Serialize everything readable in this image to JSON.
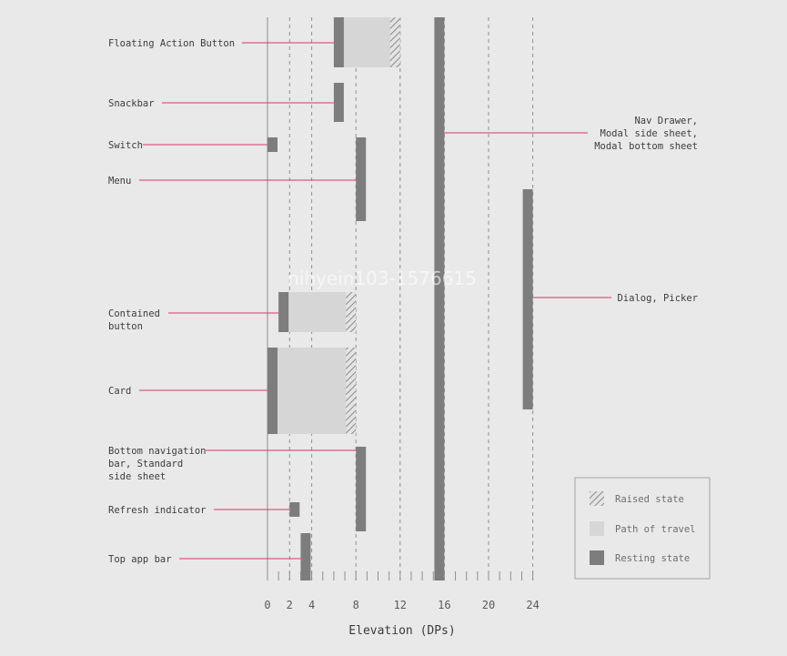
{
  "watermark": "nihyein103-1576615",
  "chart_data": {
    "type": "bar",
    "orientation": "horizontal-range",
    "xlabel": "Elevation (DPs)",
    "xticks": [
      0,
      2,
      4,
      8,
      12,
      16,
      20,
      24
    ],
    "xlim": [
      0,
      24
    ],
    "grid": "dashed vertical lines at labeled ticks",
    "categories": [
      "Floating Action Button",
      "Snackbar",
      "Switch",
      "Menu",
      "Contained button",
      "Card",
      "Bottom navigation bar, Standard side sheet",
      "Refresh indicator",
      "Top app bar",
      "Nav Drawer, Modal side sheet, Modal bottom sheet",
      "Dialog, Picker"
    ],
    "series": [
      {
        "name": "Resting state",
        "values": [
          6,
          6,
          0,
          8,
          1,
          0,
          8,
          2,
          3,
          16,
          24
        ]
      },
      {
        "name": "Path of travel",
        "ranges": [
          [
            6,
            11
          ],
          null,
          null,
          null,
          [
            1,
            7
          ],
          [
            0,
            7
          ],
          null,
          null,
          null,
          null,
          null
        ]
      },
      {
        "name": "Raised state",
        "values": [
          12,
          null,
          null,
          null,
          8,
          8,
          null,
          null,
          null,
          null,
          null
        ]
      }
    ],
    "labels": [
      {
        "text": "Floating Action Button"
      },
      {
        "text": "Snackbar"
      },
      {
        "text": "Switch"
      },
      {
        "text": "Menu"
      },
      {
        "text": "Contained\nbutton"
      },
      {
        "text": "Card"
      },
      {
        "text": "Bottom navigation\nbar, Standard\nside sheet"
      },
      {
        "text": "Refresh indicator"
      },
      {
        "text": "Top app bar"
      },
      {
        "text": "Nav Drawer,\nModal side sheet,\nModal bottom sheet"
      },
      {
        "text": "Dialog, Picker"
      }
    ],
    "legend": {
      "position": "bottom-right",
      "items": [
        {
          "label": "Raised state",
          "style": "hatched"
        },
        {
          "label": "Path of travel",
          "style": "light"
        },
        {
          "label": "Resting state",
          "style": "dark"
        }
      ]
    },
    "colors": {
      "background": "#e8e9e8",
      "resting": "#7d7d7d",
      "path": "#d5d6d5",
      "hatch": "#8a8a8a",
      "leader": "#d23c6a",
      "grid": "#8f8f8f"
    }
  }
}
